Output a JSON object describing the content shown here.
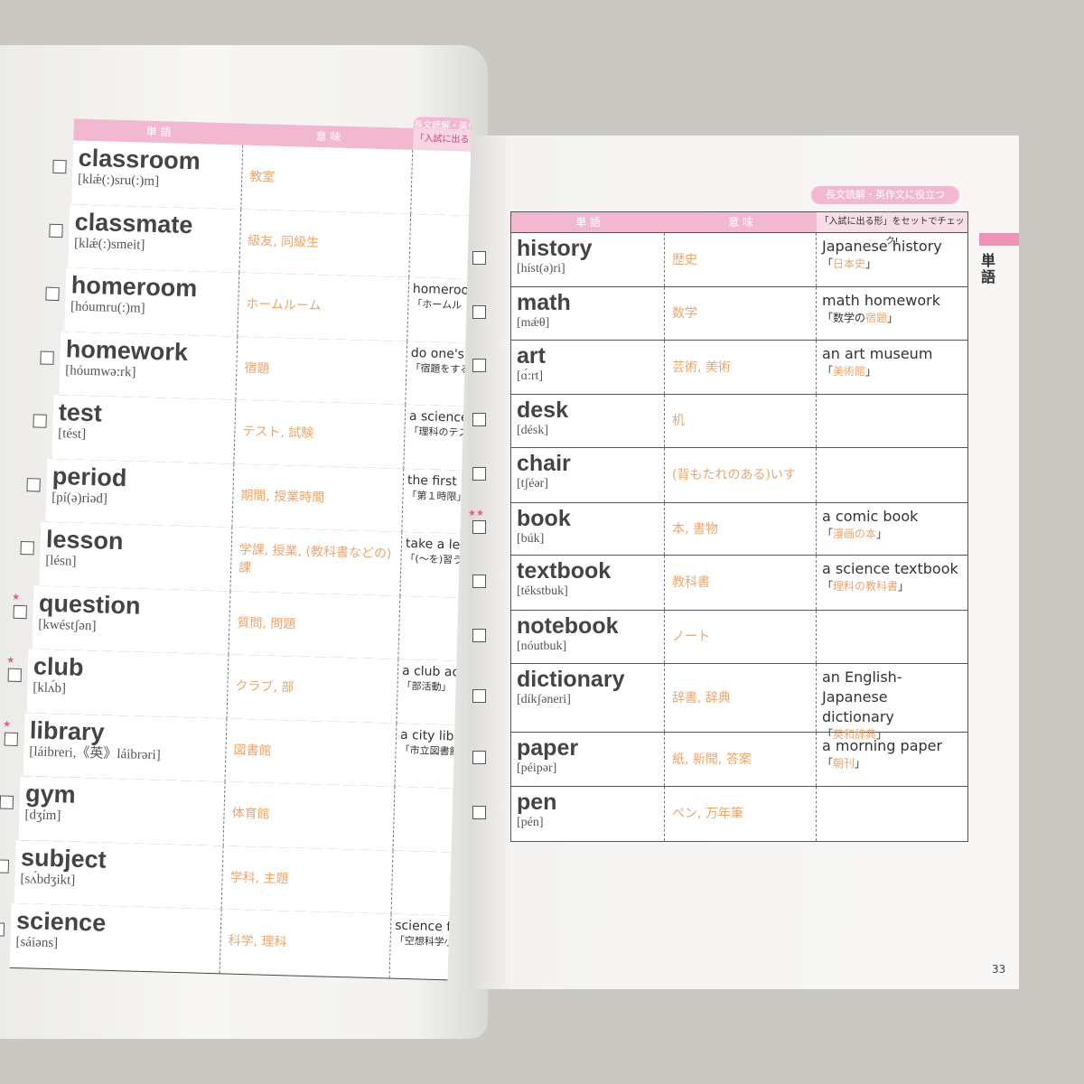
{
  "header": {
    "col_word": "単 語",
    "col_meaning": "意 味",
    "col_example": "「入試に出る形」をセットでチェック!",
    "col_example_left": "長文読解・英作",
    "tag": "長文読解・英作文に役立つ"
  },
  "side_label": "単語",
  "page_number": "33",
  "left_words": [
    {
      "word": "classroom",
      "pron": "[klǽ(:)sru(:)m]",
      "meaning": "教室",
      "ex_en": "",
      "ex_ja": ""
    },
    {
      "word": "classmate",
      "pron": "[klǽ(:)smeit]",
      "meaning": "級友, 同級生",
      "ex_en": "",
      "ex_ja": ""
    },
    {
      "word": "homeroom",
      "pron": "[hóumru(:)m]",
      "meaning": "ホームルーム",
      "ex_en": "homeroom",
      "ex_ja": "「ホームル"
    },
    {
      "word": "homework",
      "pron": "[hóumwə:rk]",
      "meaning": "宿題",
      "ex_en": "do one's ho",
      "ex_ja": "「宿題をする"
    },
    {
      "word": "test",
      "pron": "[tést]",
      "meaning": "テスト, 試験",
      "ex_en": "a science",
      "ex_ja": "「理科のテス"
    },
    {
      "word": "period",
      "pron": "[pí(ə)riəd]",
      "meaning": "期間, 授業時間",
      "ex_en": "the first pe",
      "ex_ja": "「第１時限」"
    },
    {
      "word": "lesson",
      "pron": "[lésn]",
      "meaning": "学課, 授業, (教科書などの)課",
      "ex_en": "take a lesso",
      "ex_ja": "「(～を)習う"
    },
    {
      "word": "question",
      "pron": "[kwéstʃən]",
      "meaning": "質問, 問題",
      "ex_en": "",
      "ex_ja": ""
    },
    {
      "word": "club",
      "pron": "[klʌ́b]",
      "meaning": "クラブ, 部",
      "ex_en": "a club activ",
      "ex_ja": "「部活動」"
    },
    {
      "word": "library",
      "pron": "[láibreri,《英》láibrəri]",
      "meaning": "図書館",
      "ex_en": "a city librar",
      "ex_ja": "「市立図書館」"
    },
    {
      "word": "gym",
      "pron": "[dʒím]",
      "meaning": "体育館",
      "ex_en": "",
      "ex_ja": ""
    },
    {
      "word": "subject",
      "pron": "[sʌ́bdʒikt]",
      "meaning": "学科, 主題",
      "ex_en": "",
      "ex_ja": ""
    },
    {
      "word": "science",
      "pron": "[sáiəns]",
      "meaning": "科学, 理科",
      "ex_en": "science fict",
      "ex_ja": "「空想科学小説"
    }
  ],
  "right_words": [
    {
      "word": "history",
      "pron": "[híst(ə)ri]",
      "meaning": "歴史",
      "ex_en": "Japanese history",
      "ex_ja_pre": "「",
      "ex_ja_hl": "日本史",
      "ex_ja_post": "」"
    },
    {
      "word": "math",
      "pron": "[mǽθ]",
      "meaning": "数学",
      "ex_en": "math homework",
      "ex_ja_pre": "「数学の",
      "ex_ja_hl": "宿題",
      "ex_ja_post": "」"
    },
    {
      "word": "art",
      "pron": "[ɑ́:rt]",
      "meaning": "芸術, 美術",
      "ex_en": "an art museum",
      "ex_ja_pre": "「",
      "ex_ja_hl": "美術館",
      "ex_ja_post": "」"
    },
    {
      "word": "desk",
      "pron": "[désk]",
      "meaning": "机",
      "ex_en": "",
      "ex_ja_pre": "",
      "ex_ja_hl": "",
      "ex_ja_post": ""
    },
    {
      "word": "chair",
      "pron": "[tʃéər]",
      "meaning": "(背もたれのある)いす",
      "ex_en": "",
      "ex_ja_pre": "",
      "ex_ja_hl": "",
      "ex_ja_post": ""
    },
    {
      "word": "book",
      "pron": "[búk]",
      "meaning": "本, 書物",
      "ex_en": "a comic book",
      "ex_ja_pre": "「",
      "ex_ja_hl": "漫画の本",
      "ex_ja_post": "」"
    },
    {
      "word": "textbook",
      "pron": "[tékstbuk]",
      "meaning": "教科書",
      "ex_en": "a science textbook",
      "ex_ja_pre": "「",
      "ex_ja_hl": "理科の教科書",
      "ex_ja_post": "」"
    },
    {
      "word": "notebook",
      "pron": "[nóutbuk]",
      "meaning": "ノート",
      "ex_en": "",
      "ex_ja_pre": "",
      "ex_ja_hl": "",
      "ex_ja_post": ""
    },
    {
      "word": "dictionary",
      "pron": "[díkʃəneri]",
      "meaning": "辞書, 辞典",
      "ex_en": "an English-Japanese dictionary",
      "ex_ja_pre": "「",
      "ex_ja_hl": "英和辞典",
      "ex_ja_post": "」"
    },
    {
      "word": "paper",
      "pron": "[péipər]",
      "meaning": "紙, 新聞, 答案",
      "ex_en": "a morning paper",
      "ex_ja_pre": "「",
      "ex_ja_hl": "朝刊",
      "ex_ja_post": "」"
    },
    {
      "word": "pen",
      "pron": "[pén]",
      "meaning": "ペン, 万年筆",
      "ex_en": "",
      "ex_ja_pre": "",
      "ex_ja_hl": "",
      "ex_ja_post": ""
    }
  ]
}
